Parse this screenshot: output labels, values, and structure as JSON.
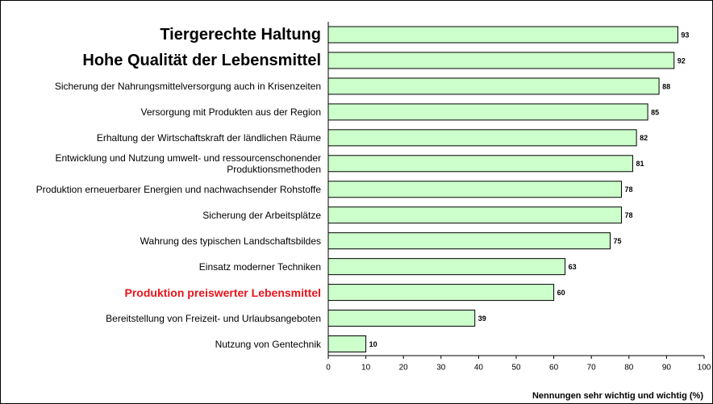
{
  "chart_data": {
    "type": "hbar",
    "x_label": "Nennungen sehr wichtig und wichtig (%)",
    "categories": [
      "Tiergerechte Haltung",
      "Hohe Qualität der Lebensmittel",
      "Sicherung der Nahrungsmittelversorgung auch in Krisenzeiten",
      "Versorgung mit Produkten aus der Region",
      "Erhaltung der Wirtschaftskraft der ländlichen Räume",
      "Entwicklung und Nutzung umwelt- und ressourcenschonender\nProduktionsmethoden",
      "Produktion erneuerbarer Energien und nachwachsender Rohstoffe",
      "Sicherung der Arbeitsplätze",
      "Wahrung des typischen Landschaftsbildes",
      "Einsatz moderner Techniken",
      "Produktion preiswerter Lebensmittel",
      "Bereitstellung von Freizeit- und Urlaubsangeboten",
      "Nutzung von Gentechnik"
    ],
    "values": [
      93,
      92,
      88,
      85,
      82,
      81,
      78,
      78,
      75,
      63,
      60,
      39,
      10
    ],
    "color": "#ccffcc",
    "xlim": [
      0,
      100
    ],
    "xticks": [
      0,
      10,
      20,
      30,
      40,
      50,
      60,
      70,
      80,
      90,
      100
    ]
  }
}
